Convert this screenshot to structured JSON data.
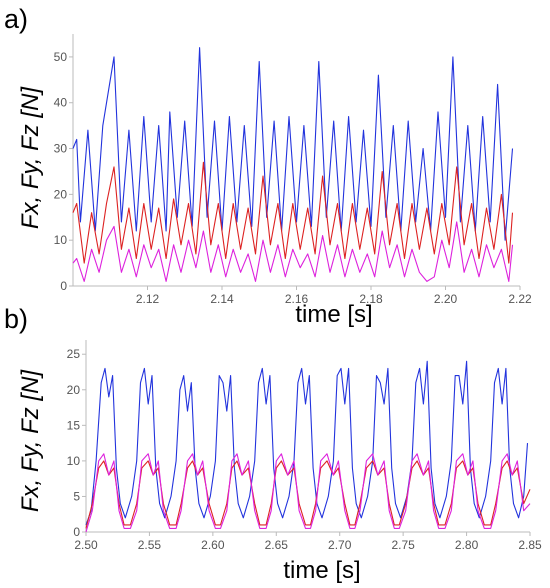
{
  "chart_data": [
    {
      "panel_label": "a)",
      "type": "line",
      "xlabel": "time [s]",
      "ylabel": "Fx, Fy, Fz [N]",
      "xlim": [
        2.1,
        2.22
      ],
      "ylim": [
        0,
        55
      ],
      "x_ticks": [
        2.12,
        2.14,
        2.16,
        2.18,
        2.2,
        2.22
      ],
      "y_ticks": [
        0,
        10,
        20,
        30,
        40,
        50
      ],
      "x_tick_labels": [
        "2.12",
        "2.14",
        "2.16",
        "2.18",
        "2.20",
        "2.22"
      ],
      "y_tick_labels": [
        "0",
        "10",
        "20",
        "30",
        "40",
        "50"
      ],
      "grid": false,
      "series": [
        {
          "color": "#2233dd",
          "x": [
            2.1,
            2.101,
            2.102,
            2.104,
            2.106,
            2.108,
            2.111,
            2.113,
            2.115,
            2.117,
            2.119,
            2.121,
            2.123,
            2.125,
            2.126,
            2.128,
            2.13,
            2.132,
            2.134,
            2.136,
            2.138,
            2.14,
            2.142,
            2.144,
            2.146,
            2.148,
            2.15,
            2.152,
            2.154,
            2.156,
            2.158,
            2.16,
            2.162,
            2.164,
            2.166,
            2.168,
            2.17,
            2.172,
            2.174,
            2.176,
            2.178,
            2.18,
            2.182,
            2.184,
            2.186,
            2.188,
            2.19,
            2.192,
            2.194,
            2.196,
            2.198,
            2.2,
            2.202,
            2.204,
            2.206,
            2.208,
            2.21,
            2.212,
            2.214,
            2.216,
            2.218
          ],
          "y": [
            30,
            32,
            14,
            34,
            12,
            35,
            50,
            14,
            34,
            12,
            37,
            14,
            35,
            12,
            38,
            15,
            36,
            13,
            52,
            15,
            36,
            12,
            37,
            14,
            35,
            13,
            49,
            15,
            36,
            12,
            37,
            14,
            35,
            13,
            49,
            15,
            36,
            12,
            37,
            14,
            34,
            13,
            46,
            15,
            35,
            12,
            36,
            14,
            30,
            12,
            38,
            15,
            50,
            14,
            35,
            12,
            37,
            14,
            44,
            10,
            30
          ]
        },
        {
          "color": "#dd2222",
          "x": [
            2.1,
            2.101,
            2.103,
            2.105,
            2.107,
            2.109,
            2.111,
            2.113,
            2.115,
            2.117,
            2.119,
            2.121,
            2.123,
            2.125,
            2.127,
            2.129,
            2.131,
            2.133,
            2.135,
            2.137,
            2.139,
            2.141,
            2.143,
            2.145,
            2.147,
            2.149,
            2.151,
            2.153,
            2.155,
            2.157,
            2.159,
            2.161,
            2.163,
            2.165,
            2.167,
            2.169,
            2.171,
            2.173,
            2.175,
            2.177,
            2.179,
            2.181,
            2.183,
            2.185,
            2.187,
            2.189,
            2.191,
            2.193,
            2.195,
            2.197,
            2.199,
            2.201,
            2.203,
            2.205,
            2.207,
            2.209,
            2.211,
            2.213,
            2.215,
            2.217,
            2.218
          ],
          "y": [
            16,
            18,
            5,
            16,
            7,
            18,
            26,
            8,
            17,
            6,
            18,
            8,
            17,
            6,
            19,
            9,
            18,
            7,
            27,
            9,
            18,
            6,
            18,
            8,
            17,
            7,
            24,
            9,
            18,
            6,
            18,
            8,
            17,
            7,
            24,
            9,
            18,
            6,
            18,
            8,
            17,
            7,
            25,
            9,
            18,
            6,
            18,
            8,
            17,
            7,
            18,
            9,
            26,
            9,
            18,
            6,
            17,
            8,
            20,
            5,
            16
          ]
        },
        {
          "color": "#dd22dd",
          "x": [
            2.1,
            2.101,
            2.103,
            2.105,
            2.107,
            2.109,
            2.111,
            2.113,
            2.115,
            2.117,
            2.119,
            2.121,
            2.123,
            2.125,
            2.127,
            2.129,
            2.131,
            2.133,
            2.135,
            2.137,
            2.139,
            2.141,
            2.143,
            2.145,
            2.147,
            2.149,
            2.151,
            2.153,
            2.155,
            2.157,
            2.159,
            2.161,
            2.163,
            2.165,
            2.167,
            2.169,
            2.171,
            2.173,
            2.175,
            2.177,
            2.179,
            2.181,
            2.183,
            2.185,
            2.187,
            2.189,
            2.191,
            2.193,
            2.195,
            2.197,
            2.199,
            2.201,
            2.203,
            2.205,
            2.207,
            2.209,
            2.211,
            2.213,
            2.215,
            2.217,
            2.218
          ],
          "y": [
            5,
            6,
            1,
            8,
            3,
            10,
            13,
            3,
            8,
            2,
            9,
            4,
            8,
            1,
            9,
            3,
            10,
            4,
            12,
            3,
            9,
            2,
            8,
            3,
            7,
            1,
            10,
            3,
            9,
            2,
            8,
            4,
            7,
            2,
            11,
            3,
            9,
            2,
            8,
            3,
            7,
            2,
            12,
            4,
            9,
            2,
            8,
            3,
            1,
            2,
            10,
            4,
            14,
            3,
            8,
            2,
            9,
            4,
            8,
            1,
            9
          ]
        }
      ]
    },
    {
      "panel_label": "b)",
      "type": "line",
      "xlabel": "time [s]",
      "ylabel": "Fx, Fy, Fz [N]",
      "xlim": [
        2.5,
        2.85
      ],
      "ylim": [
        0,
        27
      ],
      "x_ticks": [
        2.5,
        2.55,
        2.6,
        2.65,
        2.7,
        2.75,
        2.8,
        2.85
      ],
      "y_ticks": [
        0,
        5,
        10,
        15,
        20,
        25
      ],
      "x_tick_labels": [
        "2.50",
        "2.55",
        "2.60",
        "2.65",
        "2.70",
        "2.75",
        "2.80",
        "2.85"
      ],
      "y_tick_labels": [
        "0",
        "5",
        "10",
        "15",
        "20",
        "25"
      ],
      "grid": false,
      "series": [
        {
          "color": "#2233dd",
          "x": [
            2.5,
            2.504,
            2.508,
            2.512,
            2.515,
            2.518,
            2.521,
            2.524,
            2.527,
            2.531,
            2.536,
            2.54,
            2.543,
            2.546,
            2.549,
            2.552,
            2.555,
            2.558,
            2.562,
            2.567,
            2.571,
            2.574,
            2.577,
            2.58,
            2.583,
            2.586,
            2.589,
            2.593,
            2.598,
            2.602,
            2.605,
            2.608,
            2.611,
            2.614,
            2.617,
            2.62,
            2.624,
            2.629,
            2.633,
            2.636,
            2.639,
            2.642,
            2.645,
            2.648,
            2.651,
            2.655,
            2.66,
            2.664,
            2.667,
            2.67,
            2.673,
            2.676,
            2.679,
            2.682,
            2.686,
            2.691,
            2.695,
            2.698,
            2.701,
            2.704,
            2.707,
            2.71,
            2.713,
            2.717,
            2.722,
            2.726,
            2.729,
            2.732,
            2.735,
            2.738,
            2.741,
            2.744,
            2.748,
            2.753,
            2.757,
            2.76,
            2.763,
            2.766,
            2.769,
            2.772,
            2.775,
            2.779,
            2.784,
            2.788,
            2.791,
            2.794,
            2.797,
            2.8,
            2.803,
            2.806,
            2.81,
            2.815,
            2.819,
            2.822,
            2.825,
            2.828,
            2.831,
            2.834,
            2.837,
            2.841,
            2.845,
            2.848
          ],
          "y": [
            1,
            3,
            10,
            21,
            23,
            19,
            22,
            9,
            4,
            2,
            5,
            10,
            21,
            23,
            18,
            22,
            9,
            4,
            2,
            5,
            10,
            20,
            22,
            17,
            21,
            9,
            4,
            2,
            5,
            10,
            22,
            21,
            17,
            22,
            9,
            4,
            2,
            5,
            10,
            21,
            23,
            18,
            22,
            9,
            4,
            2,
            5,
            10,
            21,
            23,
            18,
            22,
            9,
            4,
            2,
            5,
            10,
            22,
            23,
            18,
            23,
            9,
            4,
            2,
            5,
            10,
            22,
            21,
            18,
            23,
            9,
            4,
            2,
            5,
            10,
            21,
            23,
            18,
            24,
            9,
            4,
            2,
            5,
            10,
            22,
            22,
            18,
            24,
            9,
            4,
            2,
            5,
            10,
            21,
            23,
            18,
            23,
            9,
            4,
            2,
            5,
            12.5
          ]
        },
        {
          "color": "#dd2222",
          "x": [
            2.5,
            2.505,
            2.51,
            2.514,
            2.518,
            2.522,
            2.526,
            2.53,
            2.535,
            2.54,
            2.544,
            2.549,
            2.553,
            2.557,
            2.561,
            2.566,
            2.571,
            2.575,
            2.58,
            2.584,
            2.588,
            2.592,
            2.597,
            2.602,
            2.606,
            2.611,
            2.615,
            2.619,
            2.623,
            2.628,
            2.633,
            2.637,
            2.642,
            2.646,
            2.65,
            2.654,
            2.659,
            2.664,
            2.668,
            2.673,
            2.677,
            2.681,
            2.685,
            2.69,
            2.695,
            2.699,
            2.704,
            2.708,
            2.712,
            2.716,
            2.721,
            2.726,
            2.73,
            2.735,
            2.739,
            2.743,
            2.747,
            2.752,
            2.757,
            2.761,
            2.766,
            2.77,
            2.774,
            2.778,
            2.783,
            2.788,
            2.792,
            2.797,
            2.801,
            2.805,
            2.809,
            2.814,
            2.819,
            2.823,
            2.828,
            2.832,
            2.836,
            2.84,
            2.845,
            2.85
          ],
          "y": [
            0.5,
            4,
            9,
            10,
            8,
            9,
            4,
            1,
            1,
            4,
            9,
            10,
            8,
            9,
            4,
            1,
            1,
            4,
            9,
            10,
            8,
            9,
            4,
            1,
            1,
            4,
            9,
            10,
            8,
            9,
            4,
            1,
            1,
            4,
            9,
            10,
            8,
            9,
            4,
            1,
            1,
            4,
            9,
            10,
            8,
            9,
            4,
            1,
            1,
            4,
            9,
            10,
            8,
            9,
            4,
            1,
            1,
            4,
            9,
            10,
            8,
            9,
            4,
            1,
            1,
            4,
            9,
            10,
            8,
            9,
            4,
            1,
            1,
            4,
            9,
            10,
            8,
            9,
            4,
            6
          ]
        },
        {
          "color": "#dd22dd",
          "x": [
            2.5,
            2.505,
            2.51,
            2.514,
            2.518,
            2.522,
            2.526,
            2.53,
            2.535,
            2.54,
            2.544,
            2.549,
            2.553,
            2.557,
            2.561,
            2.566,
            2.571,
            2.575,
            2.58,
            2.584,
            2.588,
            2.592,
            2.597,
            2.602,
            2.606,
            2.611,
            2.615,
            2.619,
            2.623,
            2.628,
            2.633,
            2.637,
            2.642,
            2.646,
            2.65,
            2.654,
            2.659,
            2.664,
            2.668,
            2.673,
            2.677,
            2.681,
            2.685,
            2.69,
            2.695,
            2.699,
            2.704,
            2.708,
            2.712,
            2.716,
            2.721,
            2.726,
            2.73,
            2.735,
            2.739,
            2.743,
            2.747,
            2.752,
            2.757,
            2.761,
            2.766,
            2.77,
            2.774,
            2.778,
            2.783,
            2.788,
            2.792,
            2.797,
            2.801,
            2.805,
            2.809,
            2.814,
            2.819,
            2.823,
            2.828,
            2.832,
            2.836,
            2.84,
            2.845,
            2.85
          ],
          "y": [
            0,
            3,
            10,
            11,
            8,
            10,
            3,
            0.5,
            0.5,
            3,
            10,
            11,
            8,
            10,
            3,
            0.5,
            0.5,
            3,
            10,
            11,
            8,
            10,
            3,
            0.5,
            0.5,
            3,
            10,
            11,
            8,
            10,
            3,
            0.5,
            0.5,
            3,
            10,
            11,
            8,
            10,
            3,
            0.5,
            0.5,
            3,
            10,
            11,
            8,
            10,
            3,
            0.5,
            0.5,
            3,
            10,
            11,
            8,
            10,
            3,
            0.5,
            0.5,
            3,
            10,
            11,
            8,
            10,
            3,
            0.5,
            0.5,
            3,
            10,
            11,
            8,
            10,
            3,
            0.5,
            0.5,
            3,
            10,
            11,
            8,
            10,
            3,
            4
          ]
        }
      ]
    }
  ]
}
